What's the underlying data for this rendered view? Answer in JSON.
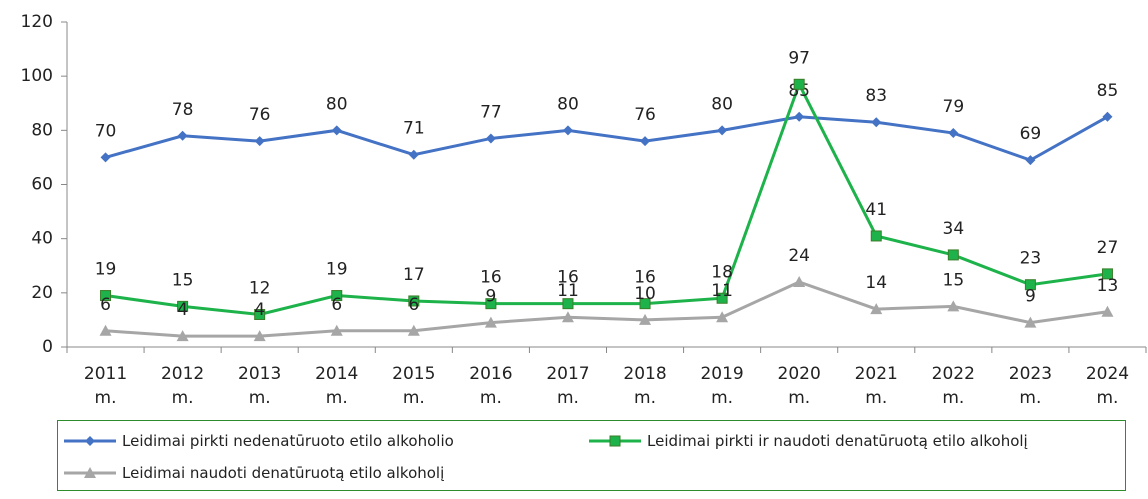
{
  "chart_data": {
    "type": "line",
    "categories": [
      "2011 m.",
      "2012 m.",
      "2013 m.",
      "2014 m.",
      "2015 m.",
      "2016 m.",
      "2017 m.",
      "2018 m.",
      "2019 m.",
      "2020 m.",
      "2021 m.",
      "2022 m.",
      "2023 m.",
      "2024 m."
    ],
    "series": [
      {
        "name": "Leidimai pirkti nedenatūruoto etilo alkoholio",
        "color": "#4472c4",
        "marker": "diamond",
        "values": [
          70,
          78,
          76,
          80,
          71,
          77,
          80,
          76,
          80,
          85,
          83,
          79,
          69,
          85
        ]
      },
      {
        "name": "Leidimai pirkti ir naudoti denatūruotą etilo alkoholį",
        "color": "#1db34a",
        "marker": "square",
        "values": [
          19,
          15,
          12,
          19,
          17,
          16,
          16,
          16,
          18,
          97,
          41,
          34,
          23,
          27
        ]
      },
      {
        "name": "Leidimai naudoti denatūruotą etilo alkoholį",
        "color": "#a6a6a6",
        "marker": "triangle",
        "values": [
          6,
          4,
          4,
          6,
          6,
          9,
          11,
          10,
          11,
          24,
          14,
          15,
          9,
          13
        ]
      }
    ],
    "ylim": [
      0,
      120
    ],
    "yticks": [
      0,
      20,
      40,
      60,
      80,
      100,
      120
    ],
    "grid": false
  }
}
